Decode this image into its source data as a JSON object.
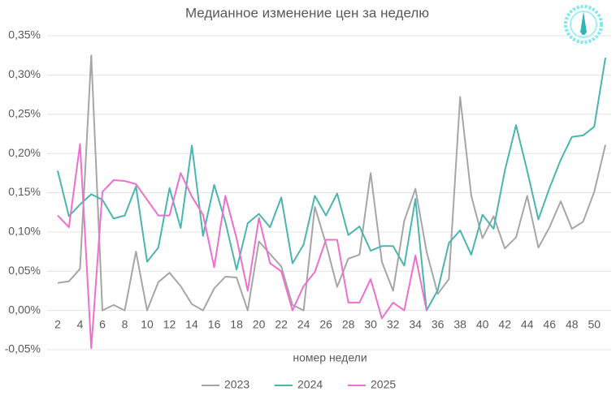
{
  "chart_data": {
    "type": "line",
    "title": "Медианное изменение цен за неделю",
    "x_label": "номер недели",
    "x": [
      2,
      3,
      4,
      5,
      6,
      7,
      8,
      9,
      10,
      11,
      12,
      13,
      14,
      15,
      16,
      17,
      18,
      19,
      20,
      21,
      22,
      23,
      24,
      25,
      26,
      27,
      28,
      29,
      30,
      31,
      32,
      33,
      34,
      35,
      36,
      37,
      38,
      39,
      40,
      41,
      42,
      43,
      44,
      45,
      46,
      47,
      48,
      49,
      50,
      51
    ],
    "xlim": [
      2,
      51
    ],
    "xticks": [
      2,
      4,
      6,
      8,
      10,
      12,
      14,
      16,
      18,
      20,
      22,
      24,
      26,
      28,
      30,
      32,
      34,
      36,
      38,
      40,
      42,
      44,
      46,
      48,
      50
    ],
    "ylim": [
      -0.05,
      0.35
    ],
    "yticks": [
      {
        "value": -0.05,
        "label": "-0,05%"
      },
      {
        "value": 0,
        "label": "0,00%"
      },
      {
        "value": 0.05,
        "label": "0,05%"
      },
      {
        "value": 0.1,
        "label": "0,10%"
      },
      {
        "value": 0.15,
        "label": "0,15%"
      },
      {
        "value": 0.2,
        "label": "0,20%"
      },
      {
        "value": 0.25,
        "label": "0,25%"
      },
      {
        "value": 0.3,
        "label": "0,30%"
      },
      {
        "value": 0.35,
        "label": "0,35%"
      }
    ],
    "grid": true,
    "legend": "bottom",
    "series": [
      {
        "name": "2023",
        "color": "#a6a6a6",
        "values": [
          0.035,
          0.037,
          0.053,
          0.325,
          0,
          0.007,
          0,
          0.075,
          0,
          0.036,
          0.048,
          0.031,
          0.008,
          0,
          0.028,
          0.043,
          0.042,
          0,
          0.088,
          0.072,
          0.056,
          0.007,
          0,
          0.132,
          0.085,
          0.03,
          0.066,
          0.071,
          0.175,
          0.062,
          0.025,
          0.114,
          0.155,
          0.075,
          0.021,
          0.04,
          0.272,
          0.146,
          0.092,
          0.12,
          0.079,
          0.093,
          0.146,
          0.08,
          0.106,
          0.139,
          0.104,
          0.113,
          0.151,
          0.211
        ]
      },
      {
        "name": "2024",
        "color": "#4bb5b0",
        "values": [
          0.178,
          0.12,
          0.135,
          0.148,
          0.141,
          0.117,
          0.121,
          0.158,
          0.062,
          0.08,
          0.156,
          0.105,
          0.21,
          0.095,
          0.16,
          0.113,
          0.052,
          0.111,
          0.123,
          0.106,
          0.144,
          0.06,
          0.084,
          0.146,
          0.121,
          0.149,
          0.096,
          0.107,
          0.076,
          0.082,
          0.082,
          0.057,
          0.142,
          0,
          0.026,
          0.086,
          0.102,
          0.071,
          0.122,
          0.104,
          0.178,
          0.236,
          0.178,
          0.116,
          0.156,
          0.192,
          0.221,
          0.223,
          0.234,
          0.322
        ]
      },
      {
        "name": "2025",
        "color": "#ee6fcf",
        "values": [
          0.121,
          0.106,
          0.212,
          -0.048,
          0.151,
          0.166,
          0.165,
          0.161,
          0.141,
          0.121,
          0.121,
          0.175,
          0.145,
          0.122,
          0.055,
          0.146,
          0.092,
          0.025,
          0.118,
          0.06,
          0.05,
          0,
          0.031,
          0.049,
          0.09,
          0.09,
          0.01,
          0.01,
          0.04,
          -0.01,
          0.01,
          0,
          0.07,
          0,
          null,
          null,
          null,
          null,
          null,
          null,
          null,
          null,
          null,
          null,
          null,
          null,
          null,
          null,
          null,
          null
        ]
      }
    ]
  }
}
